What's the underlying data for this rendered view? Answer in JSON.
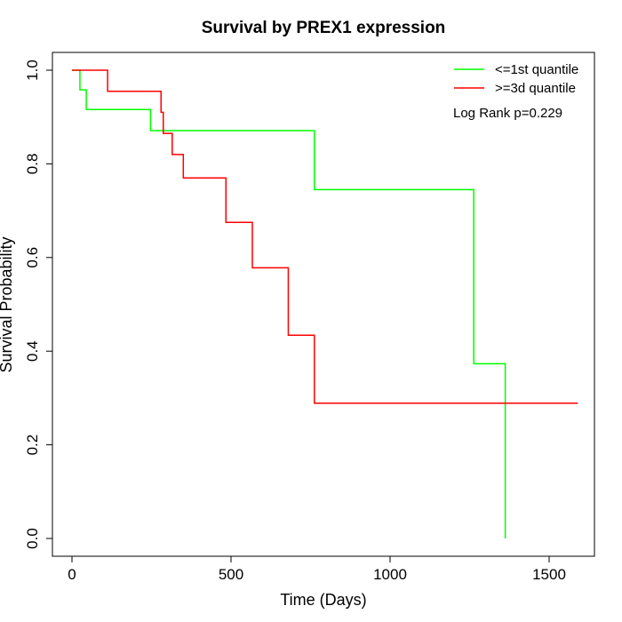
{
  "chart_data": {
    "type": "line",
    "title": "Survival by PREX1 expression",
    "xlabel": "Time (Days)",
    "ylabel": "Survival Probability",
    "xlim": [
      0,
      1650
    ],
    "ylim": [
      0,
      1.0
    ],
    "xticks": [
      0,
      500,
      1000,
      1500
    ],
    "yticks": [
      0.0,
      0.2,
      0.4,
      0.6,
      0.8,
      1.0
    ],
    "xtick_labels": [
      "0",
      "500",
      "1000",
      "1500"
    ],
    "ytick_labels": [
      "0.0",
      "0.2",
      "0.4",
      "0.6",
      "0.8",
      "1.0"
    ],
    "grid": false,
    "legend_position": "top-right",
    "annotation": "Log Rank p=0.229",
    "series": [
      {
        "name": "<=1st quantile",
        "color": "#00ff00",
        "step": true,
        "x": [
          0,
          25,
          45,
          247,
          762,
          1263,
          1362
        ],
        "y": [
          1.0,
          0.958,
          0.916,
          0.871,
          0.745,
          0.373,
          0.0
        ]
      },
      {
        "name": ">=3d quantile",
        "color": "#ff0000",
        "step": true,
        "x": [
          0,
          112,
          280,
          287,
          315,
          350,
          484,
          567,
          680,
          762,
          1590
        ],
        "y": [
          1.0,
          0.955,
          0.91,
          0.865,
          0.82,
          0.77,
          0.675,
          0.578,
          0.434,
          0.289,
          0.289
        ]
      }
    ]
  }
}
